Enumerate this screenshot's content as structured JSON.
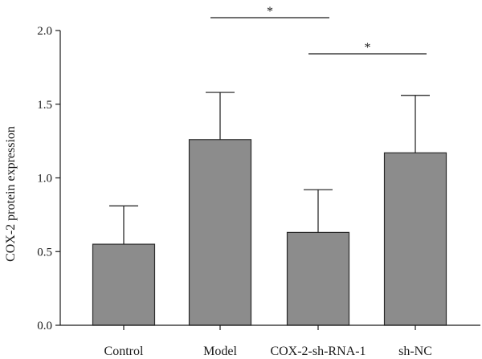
{
  "chart_data": {
    "type": "bar",
    "categories": [
      "Control",
      "Model",
      "COX-2-sh-RNA-1",
      "sh-NC"
    ],
    "values": [
      0.55,
      1.26,
      0.63,
      1.17
    ],
    "error_upper": [
      0.81,
      1.58,
      0.92,
      1.56
    ],
    "ylabel": "COX-2 protein expression",
    "xlabel": "",
    "ylim": [
      0,
      2.0
    ],
    "yticks": [
      0.0,
      0.5,
      1.0,
      1.5,
      2.0
    ],
    "ytick_labels": [
      "0.0",
      "0.5",
      "1.0",
      "1.5",
      "2.0"
    ],
    "grid": false,
    "bar_color": "#8c8c8c",
    "significance": [
      {
        "from": "Model",
        "to": "COX-2-sh-RNA-1",
        "label": "*"
      },
      {
        "from": "COX-2-sh-RNA-1",
        "to": "sh-NC",
        "label": "*"
      }
    ]
  }
}
